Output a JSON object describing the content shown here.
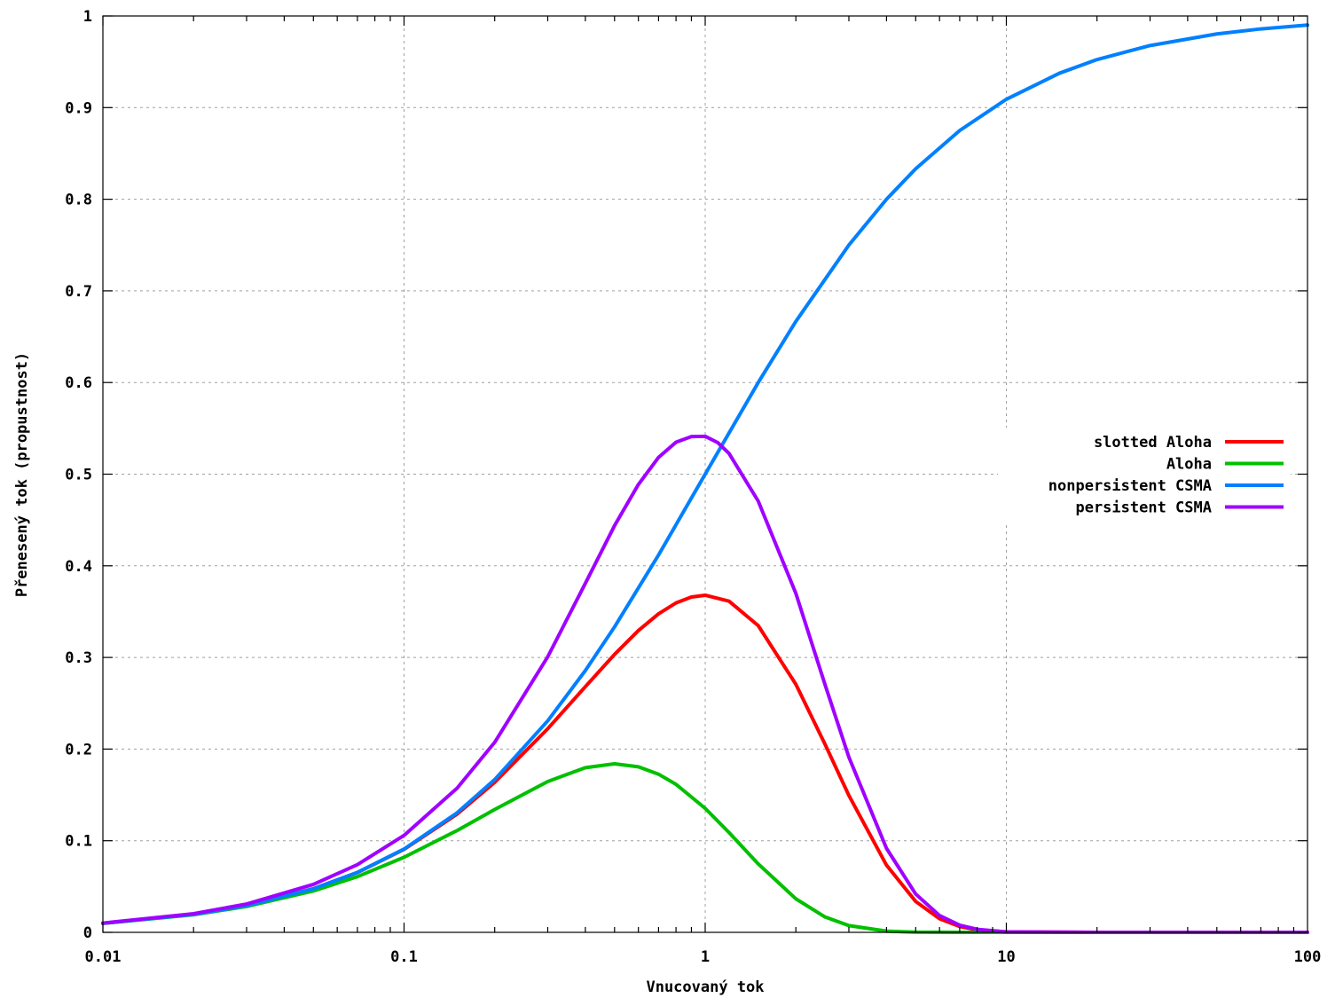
{
  "chart_data": {
    "type": "line",
    "xscale": "log",
    "xlim": [
      0.01,
      100
    ],
    "ylim": [
      0,
      1
    ],
    "grid": true,
    "legend_position": "right",
    "xlabel": "Vnucovaný tok",
    "ylabel": "Přenesený tok (propustnost)",
    "x_ticks": [
      {
        "value": 0.01,
        "label": "0.01"
      },
      {
        "value": 0.1,
        "label": "0.1"
      },
      {
        "value": 1,
        "label": "1"
      },
      {
        "value": 10,
        "label": "10"
      },
      {
        "value": 100,
        "label": "100"
      }
    ],
    "y_ticks": [
      {
        "value": 0,
        "label": "0"
      },
      {
        "value": 0.1,
        "label": "0.1"
      },
      {
        "value": 0.2,
        "label": "0.2"
      },
      {
        "value": 0.3,
        "label": "0.3"
      },
      {
        "value": 0.4,
        "label": "0.4"
      },
      {
        "value": 0.5,
        "label": "0.5"
      },
      {
        "value": 0.6,
        "label": "0.6"
      },
      {
        "value": 0.7,
        "label": "0.7"
      },
      {
        "value": 0.8,
        "label": "0.8"
      },
      {
        "value": 0.9,
        "label": "0.9"
      },
      {
        "value": 1,
        "label": "1"
      }
    ],
    "series": [
      {
        "name": "slotted Aloha",
        "color": "#ff0000",
        "points": [
          [
            0.01,
            0.0099
          ],
          [
            0.02,
            0.0196
          ],
          [
            0.03,
            0.0291
          ],
          [
            0.05,
            0.0476
          ],
          [
            0.07,
            0.0653
          ],
          [
            0.1,
            0.0905
          ],
          [
            0.15,
            0.129
          ],
          [
            0.2,
            0.1637
          ],
          [
            0.3,
            0.2222
          ],
          [
            0.4,
            0.2681
          ],
          [
            0.5,
            0.3033
          ],
          [
            0.6,
            0.3293
          ],
          [
            0.7,
            0.3476
          ],
          [
            0.8,
            0.3595
          ],
          [
            0.9,
            0.3659
          ],
          [
            1.0,
            0.3679
          ],
          [
            1.2,
            0.3614
          ],
          [
            1.5,
            0.3347
          ],
          [
            2.0,
            0.2707
          ],
          [
            2.5,
            0.2052
          ],
          [
            3.0,
            0.1494
          ],
          [
            4.0,
            0.0733
          ],
          [
            5.0,
            0.0337
          ],
          [
            6.0,
            0.0149
          ],
          [
            7.0,
            0.0064
          ],
          [
            8.0,
            0.0027
          ],
          [
            10.0,
            0.0005
          ],
          [
            20.0,
            0.0
          ],
          [
            50.0,
            0.0
          ],
          [
            100.0,
            0.0
          ]
        ]
      },
      {
        "name": "Aloha",
        "color": "#00c000",
        "points": [
          [
            0.01,
            0.0098
          ],
          [
            0.02,
            0.0192
          ],
          [
            0.03,
            0.0283
          ],
          [
            0.05,
            0.0452
          ],
          [
            0.07,
            0.0608
          ],
          [
            0.1,
            0.0819
          ],
          [
            0.15,
            0.1111
          ],
          [
            0.2,
            0.1341
          ],
          [
            0.3,
            0.1646
          ],
          [
            0.4,
            0.1797
          ],
          [
            0.5,
            0.1839
          ],
          [
            0.6,
            0.1807
          ],
          [
            0.7,
            0.1726
          ],
          [
            0.8,
            0.1615
          ],
          [
            1.0,
            0.1353
          ],
          [
            1.2,
            0.1089
          ],
          [
            1.5,
            0.0747
          ],
          [
            2.0,
            0.0366
          ],
          [
            2.5,
            0.0168
          ],
          [
            3.0,
            0.0074
          ],
          [
            4.0,
            0.0013
          ],
          [
            5.0,
            0.0002
          ],
          [
            7.0,
            0.0
          ],
          [
            10.0,
            0.0
          ],
          [
            100.0,
            0.0
          ]
        ]
      },
      {
        "name": "nonpersistent CSMA",
        "color": "#0080ff",
        "points": [
          [
            0.01,
            0.0099
          ],
          [
            0.02,
            0.0196
          ],
          [
            0.03,
            0.0291
          ],
          [
            0.05,
            0.0476
          ],
          [
            0.07,
            0.0654
          ],
          [
            0.1,
            0.0909
          ],
          [
            0.15,
            0.1304
          ],
          [
            0.2,
            0.1667
          ],
          [
            0.3,
            0.2308
          ],
          [
            0.4,
            0.2857
          ],
          [
            0.5,
            0.3333
          ],
          [
            0.7,
            0.4118
          ],
          [
            1.0,
            0.5
          ],
          [
            1.5,
            0.6
          ],
          [
            2.0,
            0.6667
          ],
          [
            3.0,
            0.75
          ],
          [
            4.0,
            0.8
          ],
          [
            5.0,
            0.8333
          ],
          [
            7.0,
            0.875
          ],
          [
            10.0,
            0.9091
          ],
          [
            15.0,
            0.9375
          ],
          [
            20.0,
            0.9524
          ],
          [
            30.0,
            0.9677
          ],
          [
            50.0,
            0.9804
          ],
          [
            70.0,
            0.9859
          ],
          [
            100.0,
            0.9901
          ]
        ]
      },
      {
        "name": "persistent CSMA",
        "color": "#a000ff",
        "points": [
          [
            0.01,
            0.0101
          ],
          [
            0.02,
            0.0204
          ],
          [
            0.03,
            0.0309
          ],
          [
            0.05,
            0.0523
          ],
          [
            0.07,
            0.0739
          ],
          [
            0.1,
            0.1058
          ],
          [
            0.15,
            0.1573
          ],
          [
            0.2,
            0.2074
          ],
          [
            0.3,
            0.3007
          ],
          [
            0.4,
            0.3809
          ],
          [
            0.5,
            0.4438
          ],
          [
            0.6,
            0.4887
          ],
          [
            0.7,
            0.5183
          ],
          [
            0.8,
            0.5349
          ],
          [
            0.9,
            0.541
          ],
          [
            1.0,
            0.5413
          ],
          [
            1.1,
            0.5345
          ],
          [
            1.2,
            0.5226
          ],
          [
            1.5,
            0.4706
          ],
          [
            2.0,
            0.3699
          ],
          [
            2.5,
            0.2703
          ],
          [
            3.0,
            0.1912
          ],
          [
            4.0,
            0.0916
          ],
          [
            5.0,
            0.0418
          ],
          [
            6.0,
            0.0183
          ],
          [
            7.0,
            0.0078
          ],
          [
            8.0,
            0.0033
          ],
          [
            10.0,
            0.0005
          ],
          [
            20.0,
            0.0
          ],
          [
            100.0,
            0.0
          ]
        ]
      }
    ]
  }
}
